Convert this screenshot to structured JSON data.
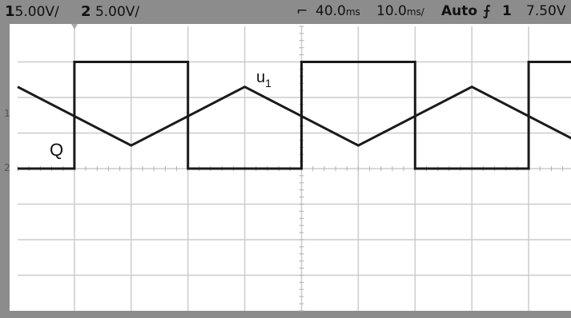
{
  "status": {
    "ch1_num": "1",
    "ch1_scale": "5.00V/",
    "ch2_num": "2",
    "ch2_scale": "5.00V/",
    "time_delay": "40.0",
    "delay_unit": "ms",
    "time_div": "10.0",
    "div_unit": "ms/",
    "mode": "Auto",
    "trig_channel": "1",
    "trig_level": "7.50V"
  },
  "labels": {
    "q_label": "Q",
    "u_label": "u",
    "u_sub": "1"
  },
  "colors": {
    "statusbar": "#8c8c8c",
    "grid": "#cccccc",
    "trace": "#1a1a1a",
    "background": "#ffffff"
  },
  "chart_data": {
    "type": "line",
    "title": "",
    "xlabel": "",
    "ylabel": "",
    "grid": true,
    "x_unit": "ms",
    "xlim": [
      0,
      100
    ],
    "y_divs": [
      -4,
      4
    ],
    "series": [
      {
        "name": "Q",
        "points": [
          [
            0,
            0
          ],
          [
            10,
            0
          ],
          [
            10,
            3
          ],
          [
            30,
            3
          ],
          [
            30,
            0
          ],
          [
            50,
            0
          ],
          [
            50,
            3
          ],
          [
            70,
            3
          ],
          [
            70,
            0
          ],
          [
            90,
            0
          ],
          [
            90,
            3
          ],
          [
            100,
            3
          ]
        ]
      },
      {
        "name": "u1",
        "points": [
          [
            0,
            2.3
          ],
          [
            20,
            0.65
          ],
          [
            40,
            2.3
          ],
          [
            60,
            0.65
          ],
          [
            80,
            2.3
          ],
          [
            100,
            0.65
          ]
        ]
      }
    ]
  }
}
